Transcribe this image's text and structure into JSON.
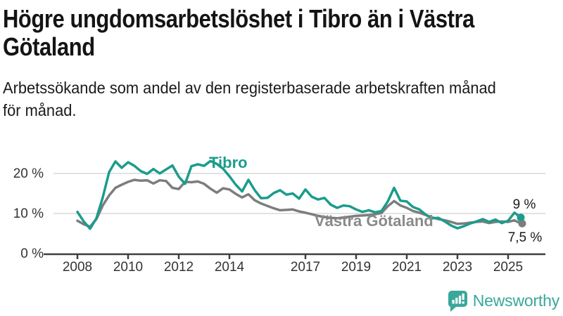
{
  "header": {
    "title": "Högre ungdomsarbetslöshet i Tibro än i Västra Götaland",
    "title_lines": [
      "Högre ungdomsarbetslöshet i Tibro än i Västra",
      "Götaland"
    ],
    "subtitle": "Arbetssökande som andel av den registerbaserade arbetskraften månad för månad.",
    "subtitle_lines": [
      "Arbetssökande som andel av den registerbaserade arbetskraften månad",
      "för månad."
    ]
  },
  "colors": {
    "teal": "#1b9c8c",
    "gray_line": "#7d7d7d",
    "gray_label": "#8a8a8a",
    "grid": "#d9d9d9",
    "axis": "#3f3f3f",
    "tick_text": "#333333",
    "annotation_text": "#1a1a1a",
    "brand_teal": "#38a89a"
  },
  "chart_data": {
    "type": "line",
    "title": "",
    "xlabel": "",
    "ylabel": "",
    "unit": "%",
    "grid": "horizontal-only",
    "legend": "inline-series-labels",
    "ylim": [
      0,
      27
    ],
    "xlim": [
      2007.6,
      2026
    ],
    "yticks": [
      {
        "value": 0,
        "label": "0 %"
      },
      {
        "value": 10,
        "label": "10 %"
      },
      {
        "value": 20,
        "label": "20 %"
      }
    ],
    "xticks": [
      {
        "year": 2008,
        "label": "2008"
      },
      {
        "year": 2010,
        "label": "2010"
      },
      {
        "year": 2012,
        "label": "2012"
      },
      {
        "year": 2014,
        "label": "2014"
      },
      {
        "year": 2017,
        "label": "2017"
      },
      {
        "year": 2019,
        "label": "2019"
      },
      {
        "year": 2021,
        "label": "2021"
      },
      {
        "year": 2023,
        "label": "2023"
      },
      {
        "year": 2025,
        "label": "2025"
      }
    ],
    "x_years": [
      2008,
      2008.25,
      2008.5,
      2008.75,
      2009,
      2009.25,
      2009.5,
      2009.75,
      2010,
      2010.25,
      2010.5,
      2010.75,
      2011,
      2011.25,
      2011.5,
      2011.75,
      2012,
      2012.25,
      2012.5,
      2012.75,
      2013,
      2013.25,
      2013.5,
      2013.75,
      2014,
      2014.25,
      2014.5,
      2014.75,
      2015,
      2015.25,
      2015.5,
      2015.75,
      2016,
      2016.25,
      2016.5,
      2016.75,
      2017,
      2017.25,
      2017.5,
      2017.75,
      2018,
      2018.25,
      2018.5,
      2018.75,
      2019,
      2019.25,
      2019.5,
      2019.75,
      2020,
      2020.25,
      2020.5,
      2020.75,
      2021,
      2021.25,
      2021.5,
      2021.75,
      2022,
      2022.25,
      2022.5,
      2022.75,
      2023,
      2023.25,
      2023.5,
      2023.75,
      2024,
      2024.25,
      2024.5,
      2024.75,
      2025,
      2025.25,
      2025.5
    ],
    "series": [
      {
        "name": "Tibro",
        "color": "#1b9c8c",
        "label_color": "#1b9c8c",
        "end_value_label": "9 %",
        "values": [
          10.4,
          8.0,
          6.2,
          8.8,
          14.0,
          20.3,
          23.0,
          21.4,
          22.8,
          21.9,
          20.6,
          19.9,
          21.1,
          20.0,
          21.0,
          22.0,
          19.2,
          17.4,
          21.8,
          22.3,
          21.9,
          23.1,
          22.4,
          21.2,
          19.3,
          17.2,
          15.5,
          18.4,
          15.8,
          13.8,
          13.9,
          15.1,
          15.8,
          14.7,
          15.0,
          13.7,
          16.0,
          14.2,
          13.5,
          13.9,
          12.2,
          11.4,
          12.0,
          11.8,
          11.0,
          10.4,
          10.8,
          10.3,
          10.6,
          13.0,
          16.4,
          13.2,
          13.0,
          11.6,
          11.0,
          9.7,
          8.8,
          8.9,
          8.0,
          7.0,
          6.3,
          6.8,
          7.5,
          8.0,
          8.6,
          7.9,
          8.5,
          7.6,
          8.2,
          10.2,
          9.0
        ]
      },
      {
        "name": "Västra Götaland",
        "color": "#7d7d7d",
        "label_color": "#8a8a8a",
        "end_value_label": "7,5 %",
        "values": [
          8.2,
          7.3,
          6.7,
          8.6,
          12.0,
          14.5,
          16.4,
          17.2,
          17.9,
          18.4,
          18.2,
          18.3,
          17.5,
          18.3,
          18.1,
          16.4,
          16.1,
          17.9,
          17.8,
          18.0,
          17.4,
          16.2,
          15.2,
          16.3,
          16.0,
          14.9,
          14.0,
          14.8,
          13.3,
          12.5,
          11.9,
          11.3,
          10.8,
          10.9,
          11.0,
          10.5,
          10.2,
          9.8,
          9.4,
          9.1,
          8.9,
          8.8,
          9.0,
          9.2,
          9.4,
          9.5,
          9.6,
          9.8,
          10.1,
          11.8,
          13.1,
          12.0,
          11.4,
          10.6,
          10.2,
          9.6,
          9.0,
          8.6,
          8.3,
          7.9,
          7.4,
          7.5,
          7.7,
          7.9,
          8.0,
          7.6,
          7.9,
          8.0,
          7.9,
          8.3,
          7.5
        ]
      }
    ]
  },
  "footer": {
    "brand": "Newsworthy",
    "logo_icon": "bar-chart-speech-bubble-icon"
  }
}
